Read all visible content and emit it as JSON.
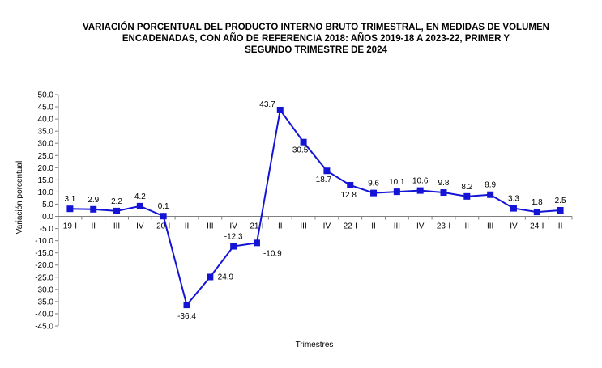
{
  "chart_data": {
    "type": "line",
    "title_lines": [
      "VARIACIÓN PORCENTUAL DEL PRODUCTO INTERNO BRUTO TRIMESTRAL, EN MEDIDAS DE VOLUMEN",
      "ENCADENADAS, CON AÑO DE  REFERENCIA 2018: AÑOS 2019-18 A 2023-22, PRIMER Y",
      "SEGUNDO TRIMESTRE DE 2024"
    ],
    "xlabel": "Trimestres",
    "ylabel": "Variación porcentual",
    "ylim": [
      -45,
      50
    ],
    "ytick_step": 5,
    "grid": false,
    "legend": "none",
    "series_color": "#1414D6",
    "categories": [
      "19-I",
      "II",
      "III",
      "IV",
      "20-I",
      "II",
      "III",
      "IV",
      "21-I",
      "II",
      "III",
      "IV",
      "22-I",
      "II",
      "III",
      "IV",
      "23-I",
      "II",
      "III",
      "IV",
      "24-I",
      "II"
    ],
    "values": [
      3.1,
      2.9,
      2.2,
      4.2,
      0.1,
      -36.4,
      -24.9,
      -12.3,
      -10.9,
      43.7,
      30.5,
      18.7,
      12.8,
      9.6,
      10.1,
      10.6,
      9.8,
      8.2,
      8.9,
      3.3,
      1.8,
      2.5
    ],
    "data_labels": [
      "3.1",
      "2.9",
      "2.2",
      "4.2",
      "0.1",
      "-36.4",
      "-24.9",
      "-12.3",
      "-10.9",
      "43.7",
      "30.5",
      "18.7",
      "12.8",
      "9.6",
      "10.1",
      "10.6",
      "9.8",
      "8.2",
      "8.9",
      "3.3",
      "1.8",
      "2.5"
    ]
  }
}
